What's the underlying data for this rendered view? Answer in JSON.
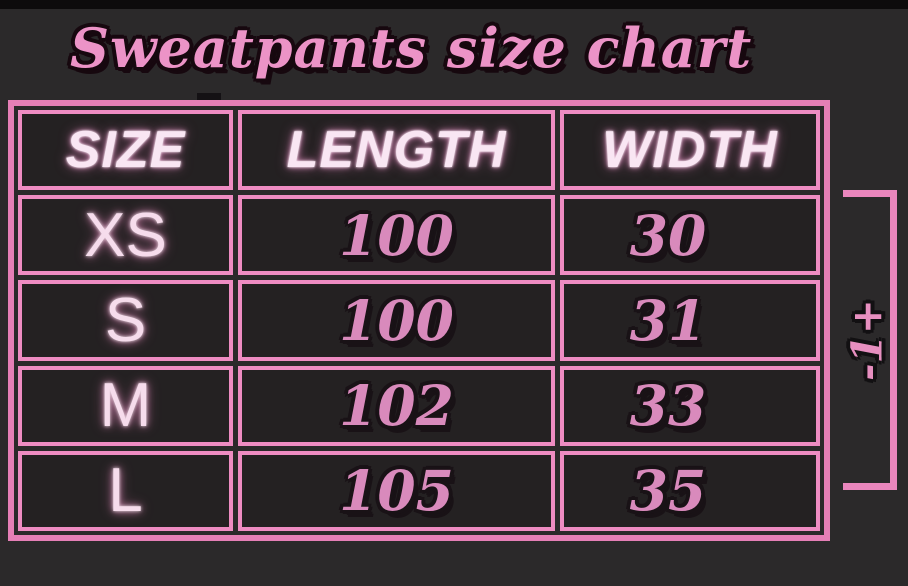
{
  "title": "Sweatpants size chart",
  "table": {
    "headers": {
      "size": "SIZE",
      "length": "LENGTH",
      "width": "WIDTH"
    },
    "rows": [
      {
        "size": "XS",
        "length": "100",
        "width": "30"
      },
      {
        "size": "S",
        "length": "100",
        "width": "31"
      },
      {
        "size": "M",
        "length": "102",
        "width": "33"
      },
      {
        "size": "L",
        "length": "105",
        "width": "35"
      }
    ]
  },
  "annotation": {
    "label": "-1+"
  },
  "colors": {
    "background": "#2b292a",
    "cell_background": "#242122",
    "border_pink": "#e57fb6",
    "cell_border_pink": "#ee8cc2",
    "title_pink": "#ec93c7",
    "number_pink": "#d98abc",
    "header_light_pink": "#f9e6f3",
    "size_label_pink": "#f6dcec",
    "bracket_pink": "#ea86bd",
    "outline_dark": "#17080f"
  },
  "chart_data": {
    "type": "table",
    "title": "Sweatpants size chart",
    "columns": [
      "SIZE",
      "LENGTH",
      "WIDTH"
    ],
    "rows": [
      [
        "XS",
        100,
        30
      ],
      [
        "S",
        100,
        31
      ],
      [
        "M",
        102,
        33
      ],
      [
        "L",
        105,
        35
      ]
    ],
    "annotations": [
      {
        "text": "-1+",
        "position": "right-bracket spanning all data rows (tolerance note)"
      }
    ],
    "layout_hints": {
      "style": "pink-on-dark size chart, bold italic numerals with drop shadow",
      "grid": "all cells bordered pink"
    }
  }
}
